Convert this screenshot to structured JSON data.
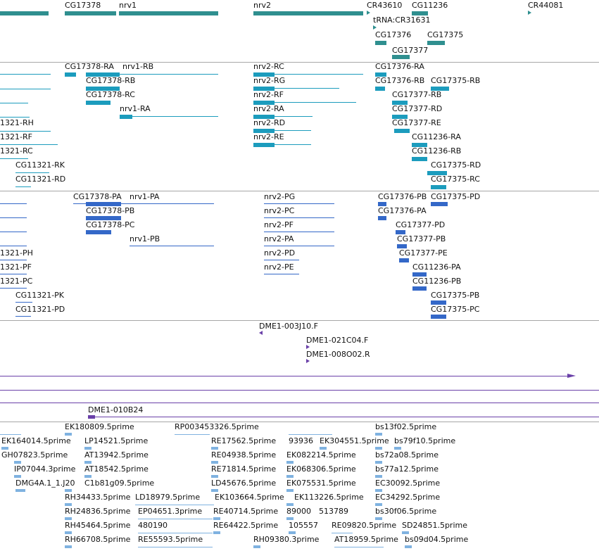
{
  "gene_track": {
    "labels": [
      "CG17378",
      "nrv1",
      "nrv2",
      "CR43610",
      "CG11236",
      "CR44081",
      "tRNA:CR31631",
      "CG17376",
      "CG17375",
      "CG17377"
    ]
  },
  "transcript_track": {
    "labels": [
      "CG17378-RA",
      "nrv1-RB",
      "CG17378-RB",
      "CG17378-RC",
      "nrv1-RA",
      "nrv2-RC",
      "nrv2-RG",
      "nrv2-RF",
      "nrv2-RA",
      "nrv2-RD",
      "nrv2-RE",
      "CG17376-RA",
      "CG17376-RB",
      "CG17375-RB",
      "CG17377-RB",
      "CG17377-RD",
      "CG17377-RE",
      "CG11236-RA",
      "CG11236-RB",
      "CG17375-RD",
      "CG17375-RC",
      "1321-RH",
      "1321-RF",
      "1321-RC",
      "CG11321-RK",
      "CG11321-RD"
    ]
  },
  "protein_track": {
    "labels": [
      "CG17378-PA",
      "nrv1-PA",
      "CG17378-PB",
      "CG17378-PC",
      "nrv1-PB",
      "nrv2-PG",
      "nrv2-PC",
      "nrv2-PF",
      "nrv2-PA",
      "nrv2-PD",
      "nrv2-PE",
      "CG17376-PB",
      "CG17375-PD",
      "CG17376-PA",
      "CG17377-PD",
      "CG17377-PB",
      "CG17377-PE",
      "CG11236-PA",
      "CG11236-PB",
      "CG17375-PB",
      "CG17375-PC",
      "1321-PH",
      "1321-PF",
      "1321-PC",
      "CG11321-PK",
      "CG11321-PD"
    ]
  },
  "clone_track": {
    "labels": [
      "DME1-003J10.F",
      "DME1-021C04.F",
      "DME1-008O02.R"
    ]
  },
  "bac_track": {
    "labels": [
      "DME1-010B24"
    ]
  },
  "est_track": {
    "labels": [
      "EK180809.5prime",
      "RP003453326.5prime",
      "bs13f02.5prime",
      "EK164014.5prime",
      "LP14521.5prime",
      "RE17562.5prime",
      "93936",
      "EK304551.5prime",
      "bs79f10.5prime",
      "GH07823.5prime",
      "AT13942.5prime",
      "RE04938.5prime",
      "EK082214.5prime",
      "bs72a08.5prime",
      "IP07044.3prime",
      "AT18542.5prime",
      "RE71814.5prime",
      "EK068306.5prime",
      "bs77a12.5prime",
      "DMG4A.1_1.J20",
      "C1b81g09.5prime",
      "LD45676.5prime",
      "EK075531.5prime",
      "EC30092.5prime",
      "RH34433.5prime",
      "LD18979.5prime",
      "EK103664.5prime",
      "EK113226.5prime",
      "EC34292.5prime",
      "RH24836.5prime",
      "EP04651.3prime",
      "RE40714.5prime",
      "89000",
      "513789",
      "bs30f06.5prime",
      "RH45464.5prime",
      "480190",
      "RE64422.5prime",
      "105557",
      "RE09820.5prime",
      "SD24851.5prime",
      "RH66708.5prime",
      "RE55593.5prime",
      "RH09380.3prime",
      "AT18959.5prime",
      "bs09d04.5prime"
    ]
  }
}
